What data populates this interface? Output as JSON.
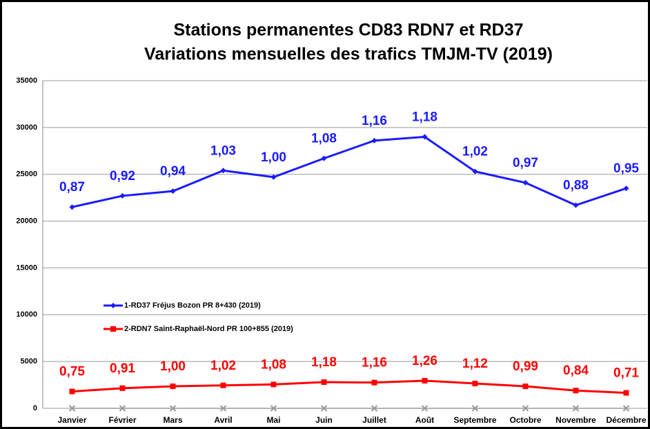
{
  "chart_data": {
    "type": "line",
    "title": "Stations permanentes CD83 RDN7 et RD37",
    "subtitle": "Variations mensuelles des trafics  TMJM-TV (2019)",
    "categories": [
      "Janvier",
      "Février",
      "Mars",
      "Avril",
      "Mai",
      "Juin",
      "Juillet",
      "Août",
      "Septembre",
      "Octobre",
      "Novembre",
      "Décembre"
    ],
    "series": [
      {
        "name": "1-RD37 Fréjus Bozon PR 8+430 (2019)",
        "color": "#1a1aff",
        "marker": "diamond",
        "values": [
          21500,
          22700,
          23200,
          25400,
          24700,
          26700,
          28600,
          29000,
          25300,
          24100,
          21700,
          23500
        ],
        "annotations": [
          "0,87",
          "0,92",
          "0,94",
          "1,03",
          "1,00",
          "1,08",
          "1,16",
          "1,18",
          "1,02",
          "0,97",
          "0,88",
          "0,95"
        ]
      },
      {
        "name": "2-RDN7 Saint-Raphaël-Nord PR 100+855 (2019)",
        "color": "#ff0000",
        "marker": "square",
        "values": [
          1800,
          2150,
          2350,
          2450,
          2550,
          2800,
          2750,
          2950,
          2650,
          2350,
          1900,
          1650
        ],
        "annotations": [
          "0,75",
          "0,91",
          "1,00",
          "1,02",
          "1,08",
          "1,18",
          "1,16",
          "1,26",
          "1,12",
          "0,99",
          "0,84",
          "0,71"
        ]
      },
      {
        "color": "#999999",
        "marker": "x",
        "values": [
          0,
          0,
          0,
          0,
          0,
          0,
          0,
          0,
          0,
          0,
          0,
          0
        ]
      }
    ],
    "ylim": [
      0,
      35000
    ],
    "yticks": [
      0,
      5000,
      10000,
      15000,
      20000,
      25000,
      30000,
      35000
    ],
    "grid": true
  }
}
